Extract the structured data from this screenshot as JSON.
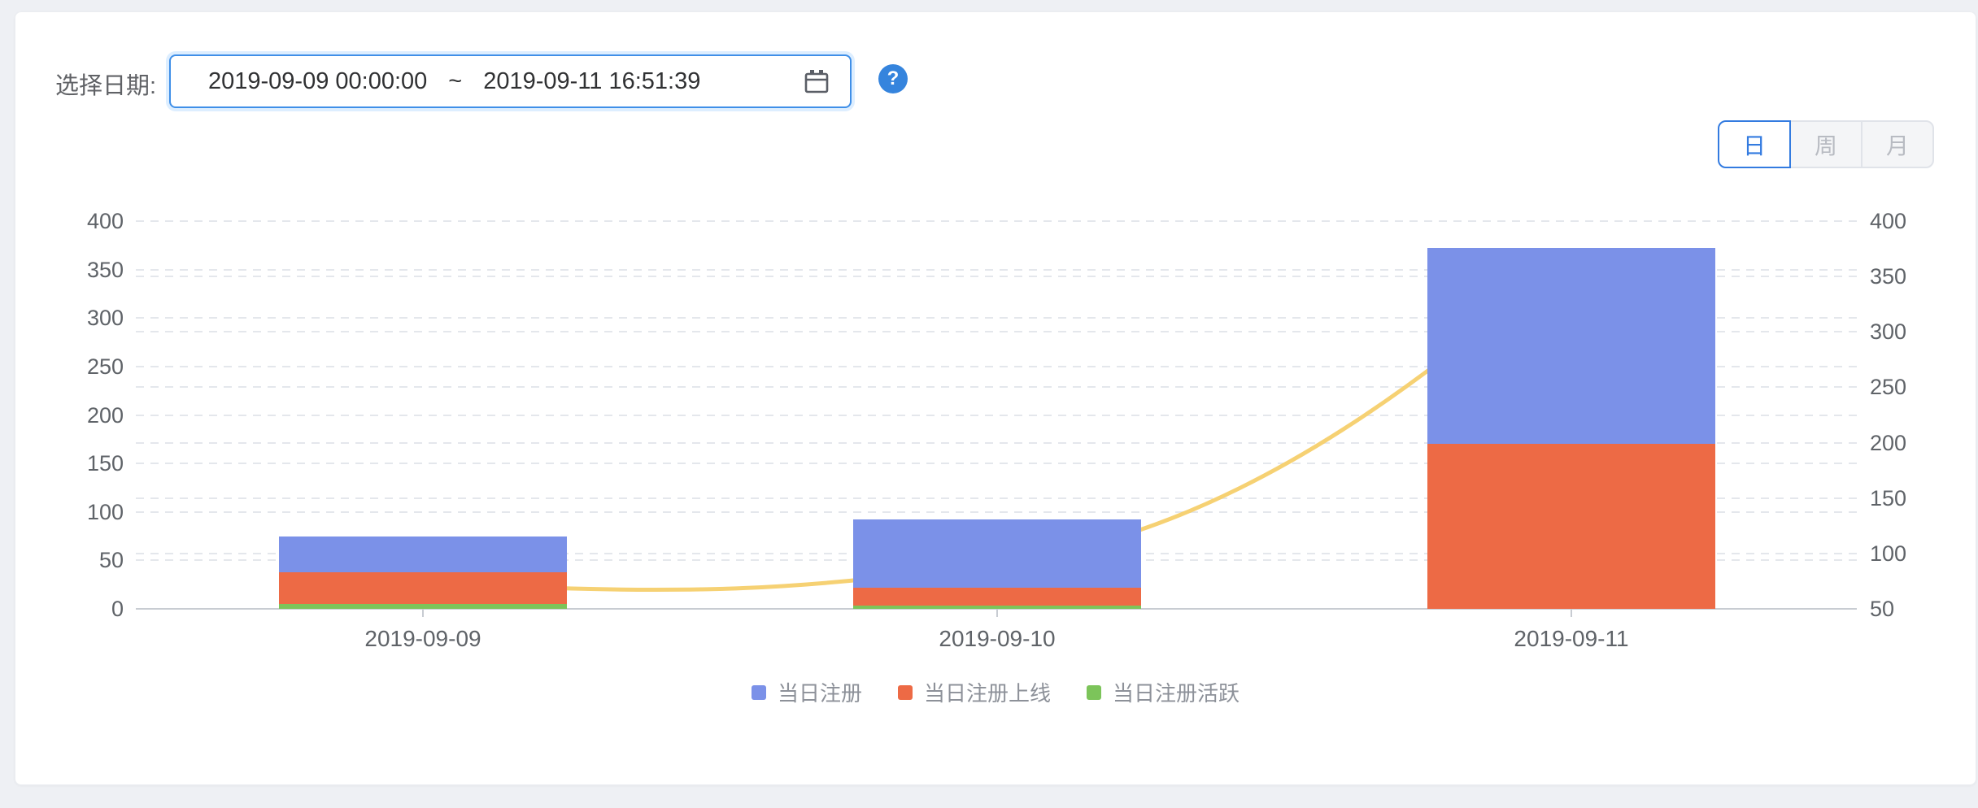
{
  "page": {
    "background_color": "#eef0f4",
    "card_color": "#ffffff",
    "accent_color": "#337be0"
  },
  "date_filter": {
    "label": "选择日期:",
    "range_start": "2019-09-09 00:00:00",
    "separator": "~",
    "range_end": "2019-09-11 16:51:39",
    "help_symbol": "?"
  },
  "granularity_tabs": {
    "options": [
      {
        "label": "日",
        "active": true
      },
      {
        "label": "周",
        "active": false
      },
      {
        "label": "月",
        "active": false
      }
    ]
  },
  "chart_data": {
    "type": "bar",
    "subtype": "overlaid bars with smooth line on secondary axis",
    "categories": [
      "2019-09-09",
      "2019-09-10",
      "2019-09-11"
    ],
    "series": [
      {
        "name": "当日注册",
        "type": "bar",
        "color": "#7b91e8",
        "axis": "left",
        "values": [
          75,
          92,
          372
        ]
      },
      {
        "name": "当日注册上线",
        "type": "bar",
        "color": "#ed6a45",
        "axis": "left",
        "values": [
          38,
          22,
          170
        ]
      },
      {
        "name": "当日注册活跃",
        "type": "bar",
        "color": "#7cc45a",
        "axis": "left",
        "values": [
          5,
          3,
          0
        ]
      },
      {
        "name": "",
        "type": "line",
        "color": "#f6d173",
        "axis": "right",
        "values": [
          75,
          92,
          372
        ]
      }
    ],
    "left_axis": {
      "min": 0,
      "max": 400,
      "interval": 50,
      "ticks": [
        400,
        350,
        300,
        250,
        200,
        150,
        100,
        50,
        0
      ]
    },
    "right_axis": {
      "min": 50,
      "max": 400,
      "interval": 50,
      "ticks": [
        400,
        350,
        300,
        250,
        200,
        150,
        100,
        50
      ]
    },
    "grid": "dashed horizontal gridlines for both axes",
    "legend": [
      {
        "label": "当日注册",
        "color": "#7b91e8"
      },
      {
        "label": "当日注册上线",
        "color": "#ed6a45"
      },
      {
        "label": "当日注册活跃",
        "color": "#7cc45a"
      }
    ],
    "legend_position": "bottom-center"
  }
}
